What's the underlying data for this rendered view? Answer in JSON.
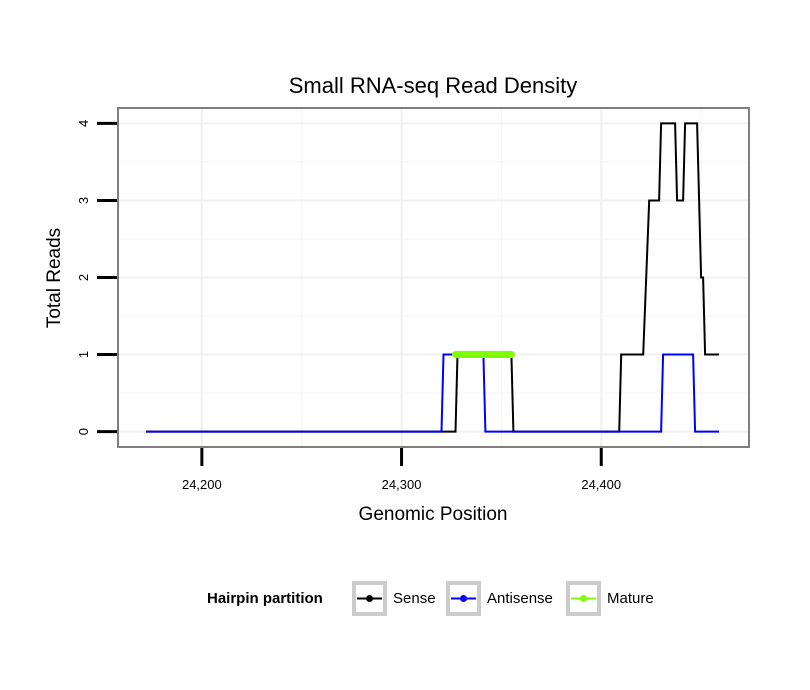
{
  "chart_data": {
    "type": "line",
    "title": "Small RNA-seq Read Density",
    "xlabel": "Genomic Position",
    "ylabel": "Total Reads",
    "xlim": [
      24158,
      24474
    ],
    "ylim": [
      -0.2,
      4.2
    ],
    "x_ticks": [
      24200,
      24300,
      24400
    ],
    "x_tick_labels": [
      "24,200",
      "24,300",
      "24,400"
    ],
    "y_ticks": [
      0,
      1,
      2,
      3,
      4
    ],
    "y_tick_labels": [
      "0",
      "1",
      "2",
      "3",
      "4"
    ],
    "grid": true,
    "legend": {
      "title": "Hairpin partition",
      "position": "bottom",
      "entries": [
        {
          "name": "Sense",
          "color": "#000000"
        },
        {
          "name": "Antisense",
          "color": "#0000ff"
        },
        {
          "name": "Mature",
          "color": "#80ff00"
        }
      ]
    },
    "series": [
      {
        "name": "Sense",
        "color": "#000000",
        "x": [
          24172,
          24327,
          24328,
          24341,
          24342,
          24355,
          24356,
          24409,
          24410,
          24421,
          24424,
          24429,
          24430,
          24437,
          24438,
          24441,
          24442,
          24448,
          24450,
          24451,
          24452,
          24459
        ],
        "y": [
          0,
          0,
          1,
          1,
          1,
          1,
          0,
          0,
          1,
          1,
          3,
          3,
          4,
          4,
          3,
          3,
          4,
          4,
          2,
          2,
          1,
          1
        ]
      },
      {
        "name": "Antisense",
        "color": "#0000ff",
        "x": [
          24172,
          24320,
          24321,
          24341,
          24342,
          24430,
          24431,
          24446,
          24447,
          24459
        ],
        "y": [
          0,
          0,
          1,
          1,
          0,
          0,
          1,
          1,
          0,
          0
        ]
      },
      {
        "name": "Mature",
        "color": "#80ff00",
        "x": [
          24327,
          24355
        ],
        "y": [
          1,
          1
        ]
      }
    ]
  }
}
